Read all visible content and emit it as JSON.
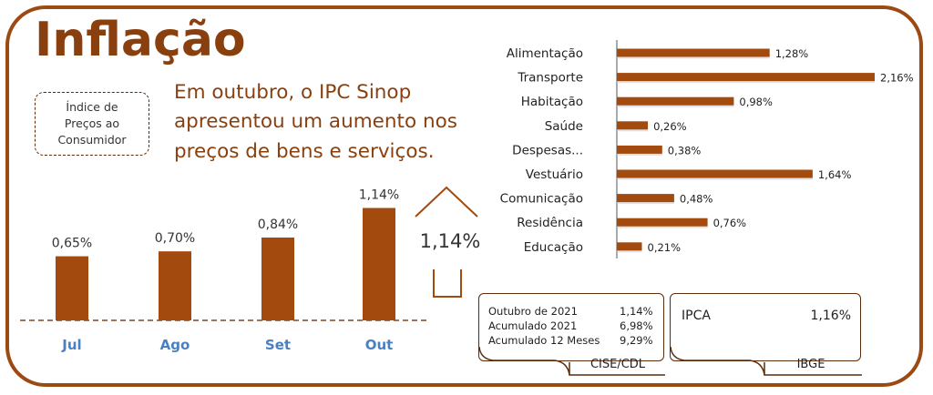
{
  "title": "Inflação",
  "ipc_label": "Índice de\nPreços ao\nConsumidor",
  "headline": "Em outubro, o IPC Sinop\napresentou um aumento nos\npreços de bens e serviços.",
  "highlight": "1,14%",
  "colors": {
    "bar": "#a34a0e",
    "frame": "#9a4a12",
    "month": "#4a7fc1",
    "text": "#8a3f0e"
  },
  "chart_data": [
    {
      "type": "bar",
      "categories": [
        "Jul",
        "Ago",
        "Set",
        "Out"
      ],
      "values": [
        0.65,
        0.7,
        0.84,
        1.14
      ],
      "labels": [
        "0,65%",
        "0,70%",
        "0,84%",
        "1,14%"
      ],
      "ylim": [
        0,
        1.2
      ]
    },
    {
      "type": "bar",
      "orientation": "horizontal",
      "categories": [
        "Alimentação",
        "Transporte",
        "Habitação",
        "Saúde",
        "Despesas...",
        "Vestuário",
        "Comunicação",
        "Residência",
        "Educação"
      ],
      "values": [
        1.28,
        2.16,
        0.98,
        0.26,
        0.38,
        1.64,
        0.48,
        0.76,
        0.21
      ],
      "labels": [
        "1,28%",
        "2,16%",
        "0,98%",
        "0,26%",
        "0,38%",
        "1,64%",
        "0,48%",
        "0,76%",
        "0,21%"
      ],
      "xlim": [
        0,
        2.16
      ]
    }
  ],
  "cise": {
    "rows": [
      {
        "label": "Outubro de 2021",
        "value": "1,14%"
      },
      {
        "label": "Acumulado 2021",
        "value": "6,98%"
      },
      {
        "label": "Acumulado 12 Meses",
        "value": "9,29%"
      }
    ],
    "tag": "CISE/CDL"
  },
  "ipca": {
    "label": "IPCA",
    "value": "1,16%",
    "tag": "IBGE"
  }
}
